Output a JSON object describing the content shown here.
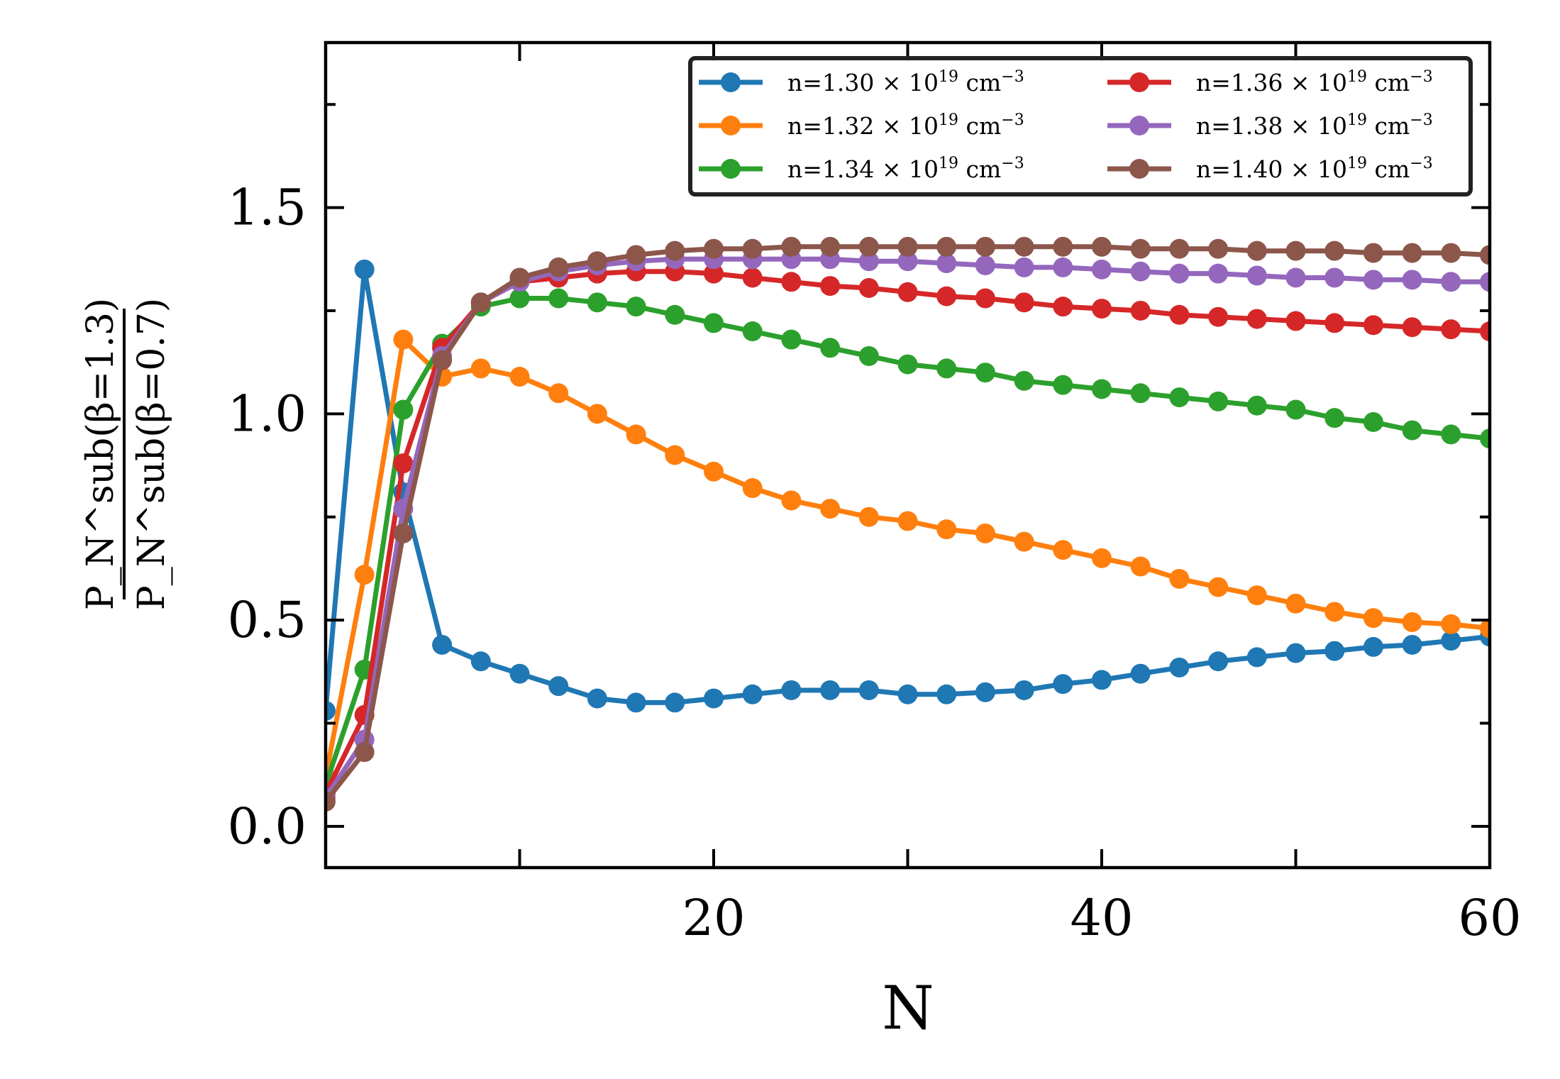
{
  "chart_data": {
    "type": "line",
    "title": "",
    "xlabel": "N",
    "ylabel": {
      "numerator": "P_N^sub(β=1.3)",
      "denominator": "P_N^sub(β=0.7)"
    },
    "xlim": [
      0,
      60
    ],
    "ylim": [
      -0.1,
      1.9
    ],
    "xticks": [
      20,
      40,
      60
    ],
    "yticks": [
      0.0,
      0.5,
      1.0,
      1.5
    ],
    "xtick_labels": [
      "20",
      "40",
      "60"
    ],
    "ytick_labels": [
      "0.0",
      "0.5",
      "1.0",
      "1.5"
    ],
    "legend_position": "top-right",
    "x": [
      0,
      2,
      4,
      6,
      8,
      10,
      12,
      14,
      16,
      18,
      20,
      22,
      24,
      26,
      28,
      30,
      32,
      34,
      36,
      38,
      40,
      42,
      44,
      46,
      48,
      50,
      52,
      54,
      56,
      58,
      60
    ],
    "series": [
      {
        "name": "n=1.30 × 10^19 cm^-3",
        "mantissa": "n=1.30",
        "times": "×",
        "base": "10",
        "exponent": "19",
        "unit": "cm",
        "unit_exponent": "−3",
        "color": "#1f77b4",
        "values": [
          0.28,
          1.35,
          0.81,
          0.44,
          0.4,
          0.37,
          0.34,
          0.31,
          0.3,
          0.3,
          0.31,
          0.32,
          0.33,
          0.33,
          0.33,
          0.32,
          0.32,
          0.325,
          0.33,
          0.345,
          0.355,
          0.37,
          0.385,
          0.4,
          0.41,
          0.42,
          0.425,
          0.435,
          0.44,
          0.45,
          0.46
        ]
      },
      {
        "name": "n=1.32 × 10^19 cm^-3",
        "mantissa": "n=1.32",
        "times": "×",
        "base": "10",
        "exponent": "19",
        "unit": "cm",
        "unit_exponent": "−3",
        "color": "#ff7f0e",
        "values": [
          0.12,
          0.61,
          1.18,
          1.09,
          1.11,
          1.09,
          1.05,
          1.0,
          0.95,
          0.9,
          0.86,
          0.82,
          0.79,
          0.77,
          0.75,
          0.74,
          0.72,
          0.71,
          0.69,
          0.67,
          0.65,
          0.63,
          0.6,
          0.58,
          0.56,
          0.54,
          0.52,
          0.505,
          0.495,
          0.49,
          0.48
        ]
      },
      {
        "name": "n=1.34 × 10^19 cm^-3",
        "mantissa": "n=1.34",
        "times": "×",
        "base": "10",
        "exponent": "19",
        "unit": "cm",
        "unit_exponent": "−3",
        "color": "#2ca02c",
        "values": [
          0.1,
          0.38,
          1.01,
          1.17,
          1.26,
          1.28,
          1.28,
          1.27,
          1.26,
          1.24,
          1.22,
          1.2,
          1.18,
          1.16,
          1.14,
          1.12,
          1.11,
          1.1,
          1.08,
          1.07,
          1.06,
          1.05,
          1.04,
          1.03,
          1.02,
          1.01,
          0.99,
          0.98,
          0.96,
          0.95,
          0.94
        ]
      },
      {
        "name": "n=1.36 × 10^19 cm^-3",
        "mantissa": "n=1.36",
        "times": "×",
        "base": "10",
        "exponent": "19",
        "unit": "cm",
        "unit_exponent": "−3",
        "color": "#d62728",
        "values": [
          0.08,
          0.27,
          0.88,
          1.16,
          1.27,
          1.32,
          1.33,
          1.34,
          1.345,
          1.345,
          1.34,
          1.33,
          1.32,
          1.31,
          1.305,
          1.295,
          1.285,
          1.28,
          1.27,
          1.26,
          1.255,
          1.25,
          1.24,
          1.235,
          1.23,
          1.225,
          1.22,
          1.215,
          1.21,
          1.205,
          1.2
        ]
      },
      {
        "name": "n=1.38 × 10^19 cm^-3",
        "mantissa": "n=1.38",
        "times": "×",
        "base": "10",
        "exponent": "19",
        "unit": "cm",
        "unit_exponent": "−3",
        "color": "#9467bd",
        "values": [
          0.07,
          0.21,
          0.77,
          1.14,
          1.27,
          1.32,
          1.345,
          1.36,
          1.37,
          1.375,
          1.375,
          1.375,
          1.375,
          1.375,
          1.37,
          1.37,
          1.365,
          1.36,
          1.355,
          1.355,
          1.35,
          1.345,
          1.34,
          1.34,
          1.335,
          1.33,
          1.33,
          1.325,
          1.325,
          1.32,
          1.32
        ]
      },
      {
        "name": "n=1.40 × 10^19 cm^-3",
        "mantissa": "n=1.40",
        "times": "×",
        "base": "10",
        "exponent": "19",
        "unit": "cm",
        "unit_exponent": "−3",
        "color": "#8c564b",
        "values": [
          0.06,
          0.18,
          0.71,
          1.13,
          1.27,
          1.33,
          1.355,
          1.37,
          1.385,
          1.395,
          1.4,
          1.4,
          1.405,
          1.405,
          1.405,
          1.405,
          1.405,
          1.405,
          1.405,
          1.405,
          1.405,
          1.4,
          1.4,
          1.4,
          1.395,
          1.395,
          1.395,
          1.39,
          1.39,
          1.39,
          1.385
        ]
      }
    ]
  }
}
